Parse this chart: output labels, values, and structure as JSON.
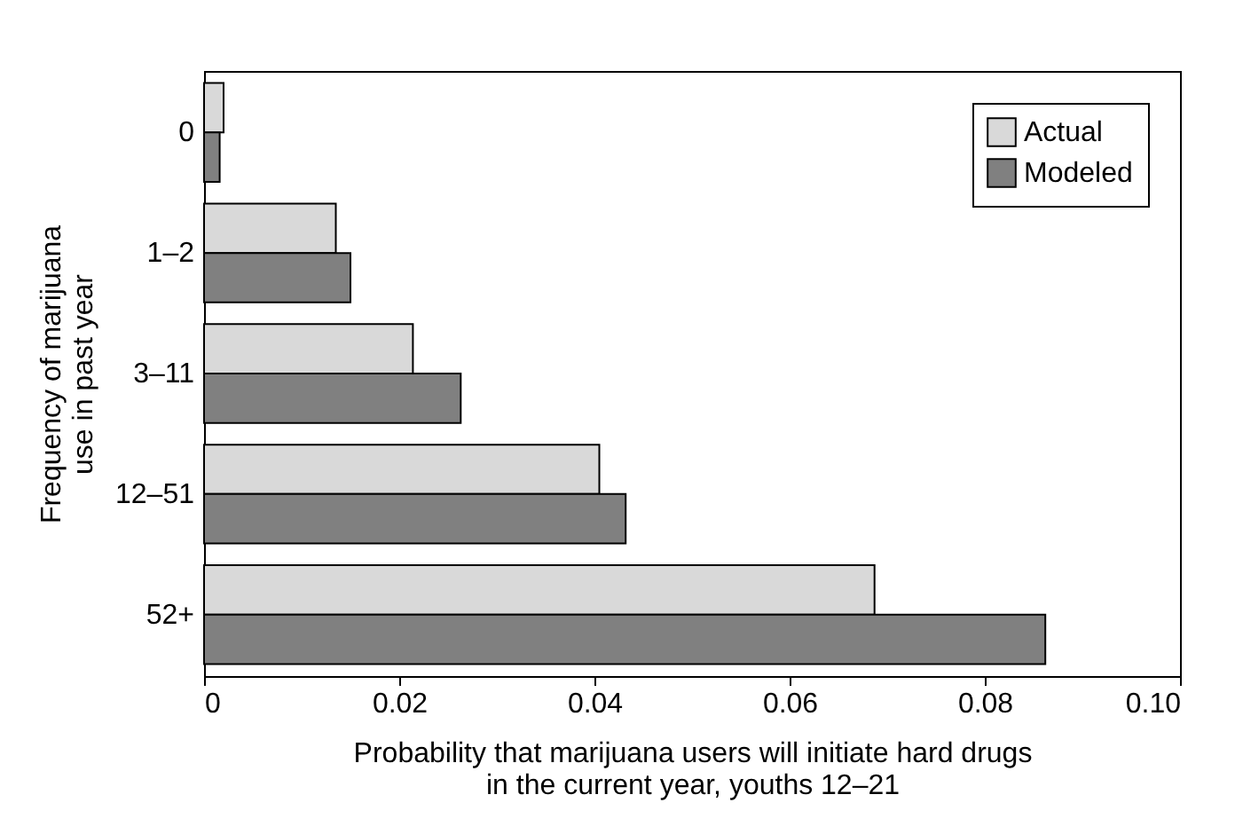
{
  "chart_data": {
    "type": "bar",
    "orientation": "horizontal",
    "categories": [
      "0",
      "1–2",
      "3–11",
      "12–51",
      "52+"
    ],
    "series": [
      {
        "name": "Actual",
        "color": "#d9d9d9",
        "values": [
          0.002,
          0.0135,
          0.0214,
          0.0405,
          0.0687
        ]
      },
      {
        "name": "Modeled",
        "color": "#808080",
        "values": [
          0.0016,
          0.015,
          0.0263,
          0.0432,
          0.0862
        ]
      }
    ],
    "xlim": [
      0,
      0.1
    ],
    "xticks": [
      0,
      0.02,
      0.04,
      0.06,
      0.08,
      {
        "value": 0.1,
        "label": "0.10"
      }
    ],
    "xlabel": "Probability that marijuana users will initiate hard drugs\nin the current year, youths 12–21",
    "ylabel": "Frequency of marijuana\nuse in past year",
    "legend": "top right",
    "grid": false
  }
}
